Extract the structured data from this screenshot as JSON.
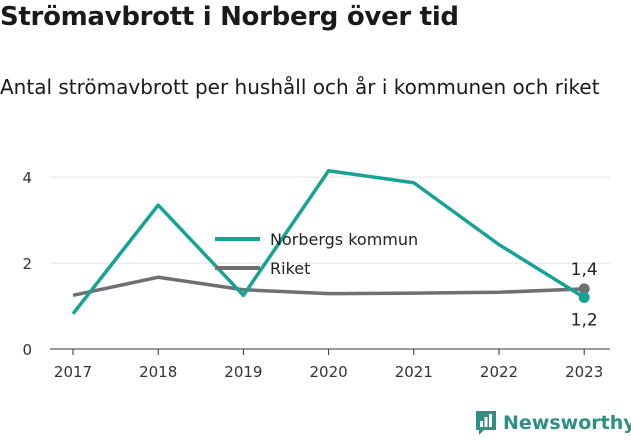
{
  "header": {
    "title": "Strömavbrott i Norberg över tid",
    "subtitle": "Antal strömavbrott per hushåll och år i kommunen och riket"
  },
  "logo": {
    "text": "Newsworthy",
    "icon": "bar-chart-speech-icon",
    "color": "#2f8f83"
  },
  "chart_data": {
    "type": "line",
    "title": "Strömavbrott i Norberg över tid",
    "subtitle": "Antal strömavbrott per hushåll och år i kommunen och riket",
    "xlabel": "",
    "ylabel": "",
    "x": [
      "2017",
      "2018",
      "2019",
      "2020",
      "2021",
      "2022",
      "2023"
    ],
    "ylim": [
      0,
      4.4
    ],
    "yticks": [
      0,
      2,
      4
    ],
    "grid": true,
    "legend": "center",
    "series": [
      {
        "name": "Norbergs kommun",
        "color": "#17a296",
        "values": [
          0.82,
          3.35,
          1.25,
          4.15,
          3.87,
          2.43,
          1.2
        ],
        "end_label": "1,2"
      },
      {
        "name": "Riket",
        "color": "#6f6f75",
        "values": [
          1.25,
          1.67,
          1.38,
          1.29,
          1.3,
          1.32,
          1.4
        ],
        "end_label": "1,4"
      }
    ]
  }
}
